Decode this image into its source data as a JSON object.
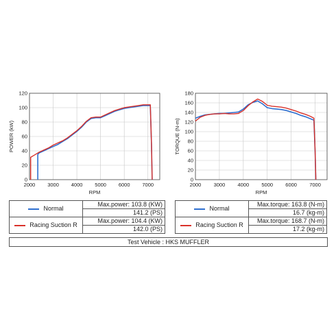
{
  "chart_data": [
    {
      "type": "line",
      "ylabel": "POWER (kW)",
      "xlabel": "RPM",
      "xlim": [
        2000,
        7500
      ],
      "ylim": [
        0,
        120
      ],
      "xticks": [
        2000,
        3000,
        4000,
        5000,
        6000,
        7000
      ],
      "yticks": [
        0,
        20,
        40,
        60,
        80,
        100,
        120
      ],
      "grid": true,
      "series": [
        {
          "name": "Normal",
          "color": "#2e6fd0",
          "x": [
            2350,
            2350,
            2400,
            2600,
            2800,
            3000,
            3200,
            3400,
            3600,
            3800,
            4000,
            4200,
            4400,
            4600,
            4800,
            5000,
            5200,
            5400,
            5600,
            5800,
            6000,
            6200,
            6400,
            6600,
            6800,
            7000,
            7100,
            7150,
            7180
          ],
          "y": [
            0,
            35,
            37,
            40,
            43,
            46,
            49,
            53,
            57,
            62,
            67,
            73,
            80,
            85,
            86,
            86,
            89,
            92,
            95,
            97,
            99,
            100,
            101,
            102,
            103,
            103,
            103,
            50,
            0
          ]
        },
        {
          "name": "Racing Suction R",
          "color": "#d9312a",
          "x": [
            2050,
            2050,
            2200,
            2300,
            2400,
            2600,
            2800,
            3000,
            3200,
            3400,
            3600,
            3800,
            4000,
            4200,
            4400,
            4600,
            4800,
            5000,
            5200,
            5400,
            5600,
            5800,
            6000,
            6200,
            6400,
            6600,
            6800,
            7000,
            7100,
            7150,
            7180
          ],
          "y": [
            0,
            31,
            34,
            36,
            38,
            41,
            44,
            48,
            51,
            54,
            58,
            63,
            68,
            74,
            81,
            86,
            87,
            87,
            90,
            93,
            96,
            98,
            100,
            101,
            102,
            103,
            104,
            104,
            104,
            50,
            0
          ]
        }
      ]
    },
    {
      "type": "line",
      "ylabel": "TORQUE (N-m)",
      "xlabel": "RPM",
      "xlim": [
        2000,
        7500
      ],
      "ylim": [
        0,
        180
      ],
      "xticks": [
        2000,
        3000,
        4000,
        5000,
        6000,
        7000
      ],
      "yticks": [
        0,
        20,
        40,
        60,
        80,
        100,
        120,
        140,
        160,
        180
      ],
      "grid": true,
      "series": [
        {
          "name": "Normal",
          "color": "#2e6fd0",
          "x": [
            2000,
            2200,
            2400,
            2600,
            2800,
            3000,
            3200,
            3400,
            3600,
            3800,
            4000,
            4200,
            4400,
            4600,
            4800,
            5000,
            5200,
            5400,
            5600,
            5800,
            6000,
            6200,
            6400,
            6600,
            6800,
            6950,
            7000,
            7030
          ],
          "y": [
            128,
            132,
            135,
            136,
            137,
            138,
            138,
            139,
            140,
            141,
            147,
            156,
            161,
            164,
            158,
            150,
            148,
            147,
            146,
            144,
            141,
            138,
            134,
            131,
            127,
            124,
            60,
            0
          ]
        },
        {
          "name": "Racing Suction R",
          "color": "#d9312a",
          "x": [
            2000,
            2200,
            2400,
            2600,
            2800,
            3000,
            3200,
            3400,
            3600,
            3800,
            4000,
            4200,
            4400,
            4600,
            4800,
            5000,
            5200,
            5400,
            5600,
            5800,
            6000,
            6200,
            6400,
            6600,
            6800,
            6950,
            7000,
            7030
          ],
          "y": [
            122,
            130,
            134,
            136,
            137,
            137,
            138,
            137,
            137,
            138,
            144,
            154,
            162,
            168,
            163,
            155,
            153,
            152,
            151,
            149,
            146,
            143,
            139,
            136,
            132,
            128,
            62,
            0
          ]
        }
      ]
    }
  ],
  "results": {
    "power": [
      {
        "name": "Normal",
        "color": "#2e6fd0",
        "line1": "Max.power: 103.8 (KW)",
        "line2": "141.2 (PS)"
      },
      {
        "name": "Racing Suction R",
        "color": "#d9312a",
        "line1": "Max.power: 104.4 (KW)",
        "line2": "142.0 (PS)"
      }
    ],
    "torque": [
      {
        "name": "Normal",
        "color": "#2e6fd0",
        "line1": "Max.torque: 163.8 (N-m)",
        "line2": "16.7 (kg-m)"
      },
      {
        "name": "Racing Suction R",
        "color": "#d9312a",
        "line1": "Max.torque: 168.7 (N-m)",
        "line2": "17.2 (kg-m)"
      }
    ]
  },
  "footer": {
    "vehicle": "Test Vehicle : HKS MUFFLER"
  }
}
